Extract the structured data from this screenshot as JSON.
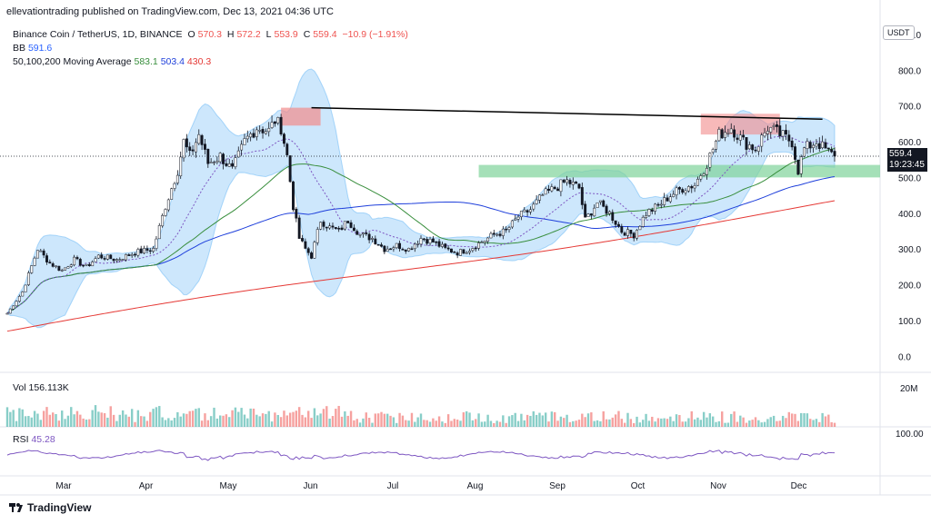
{
  "publisher_line": "ellevationtrading published on TradingView.com, Dec 13, 2021 04:36 UTC",
  "symbol": {
    "name": "Binance Coin / TetherUS, 1D, BINANCE",
    "open_label": "O",
    "open": "570.3",
    "high_label": "H",
    "high": "572.2",
    "low_label": "L",
    "low": "553.9",
    "close_label": "C",
    "close": "559.4",
    "change": "−10.9 (−1.91%)"
  },
  "bb": {
    "label": "BB",
    "value": "591.6"
  },
  "ma": {
    "label": "50,100,200 Moving Average",
    "ma50": "583.1",
    "ma100": "503.4",
    "ma200": "430.3"
  },
  "currency_button": "USDT",
  "last_price": {
    "price": "559.4",
    "countdown": "19:23:45"
  },
  "volume": {
    "label": "Vol",
    "value": "156.113K",
    "axis_label": "20M"
  },
  "rsi": {
    "label": "RSI",
    "value": "45.28",
    "axis_label": "100.00"
  },
  "footer_logo": "TradingView",
  "colors": {
    "up": "#26a69a",
    "down": "#ef5350",
    "resistance": "#f28b8b",
    "support": "#7fd39a",
    "bb_fill": "#90caf9"
  },
  "chart_data": {
    "type": "candlestick",
    "y_axis": {
      "ticks": [
        "900.0",
        "800.0",
        "700.0",
        "600.0",
        "500.0",
        "400.0",
        "300.0",
        "200.0",
        "100.0",
        "0.0"
      ],
      "range": [
        -40,
        920
      ]
    },
    "x_axis": {
      "ticks": [
        "Mar",
        "Apr",
        "May",
        "Jun",
        "Jul",
        "Aug",
        "Sep",
        "Oct",
        "Nov",
        "Dec"
      ]
    },
    "series_close": [
      [
        0,
        120
      ],
      [
        5,
        180
      ],
      [
        10,
        300
      ],
      [
        14,
        260
      ],
      [
        18,
        240
      ],
      [
        22,
        270
      ],
      [
        26,
        250
      ],
      [
        30,
        280
      ],
      [
        36,
        270
      ],
      [
        42,
        290
      ],
      [
        48,
        300
      ],
      [
        52,
        420
      ],
      [
        56,
        520
      ],
      [
        58,
        600
      ],
      [
        60,
        560
      ],
      [
        63,
        620
      ],
      [
        66,
        540
      ],
      [
        70,
        560
      ],
      [
        74,
        520
      ],
      [
        78,
        600
      ],
      [
        82,
        640
      ],
      [
        86,
        630
      ],
      [
        88,
        660
      ],
      [
        90,
        640
      ],
      [
        92,
        560
      ],
      [
        94,
        420
      ],
      [
        96,
        330
      ],
      [
        98,
        300
      ],
      [
        100,
        280
      ],
      [
        103,
        380
      ],
      [
        106,
        360
      ],
      [
        109,
        350
      ],
      [
        112,
        380
      ],
      [
        116,
        340
      ],
      [
        120,
        330
      ],
      [
        124,
        300
      ],
      [
        128,
        310
      ],
      [
        132,
        300
      ],
      [
        136,
        330
      ],
      [
        140,
        320
      ],
      [
        144,
        300
      ],
      [
        148,
        290
      ],
      [
        152,
        300
      ],
      [
        156,
        320
      ],
      [
        160,
        340
      ],
      [
        164,
        350
      ],
      [
        168,
        390
      ],
      [
        172,
        410
      ],
      [
        176,
        450
      ],
      [
        180,
        470
      ],
      [
        184,
        490
      ],
      [
        188,
        470
      ],
      [
        190,
        380
      ],
      [
        194,
        430
      ],
      [
        198,
        400
      ],
      [
        202,
        350
      ],
      [
        206,
        340
      ],
      [
        210,
        400
      ],
      [
        214,
        420
      ],
      [
        218,
        450
      ],
      [
        222,
        470
      ],
      [
        226,
        480
      ],
      [
        230,
        540
      ],
      [
        234,
        620
      ],
      [
        238,
        640
      ],
      [
        242,
        600
      ],
      [
        246,
        580
      ],
      [
        250,
        640
      ],
      [
        254,
        620
      ],
      [
        258,
        600
      ],
      [
        260,
        520
      ],
      [
        262,
        580
      ],
      [
        266,
        600
      ],
      [
        270,
        570
      ],
      [
        272,
        559
      ]
    ]
  }
}
